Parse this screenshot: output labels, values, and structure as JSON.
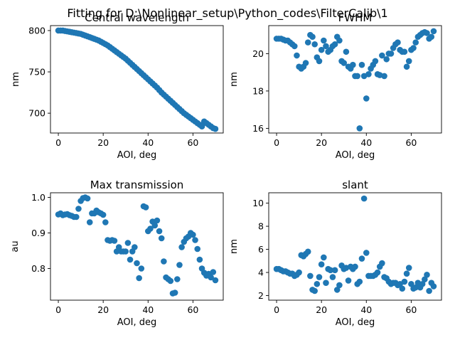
{
  "figure": {
    "suptitle": "Fitting for D:\\Nonlinear_setup\\Python_codes\\FilterCalib\\1",
    "marker_color": "#1f77b4"
  },
  "chart_data": [
    {
      "type": "scatter",
      "title": "Central wavelength",
      "xlabel": "AOI, deg",
      "ylabel": "nm",
      "xlim": [
        -3.5,
        73.5
      ],
      "ylim": [
        676,
        806
      ],
      "xticks": [
        0,
        20,
        40,
        60
      ],
      "yticks": [
        700,
        750,
        800
      ],
      "x": [
        0,
        1,
        2,
        3,
        4,
        5,
        6,
        7,
        8,
        9,
        10,
        11,
        12,
        13,
        14,
        15,
        16,
        17,
        18,
        19,
        20,
        21,
        22,
        23,
        24,
        25,
        26,
        27,
        28,
        29,
        30,
        31,
        32,
        33,
        34,
        35,
        36,
        37,
        38,
        39,
        40,
        41,
        42,
        43,
        44,
        45,
        46,
        47,
        48,
        49,
        50,
        51,
        52,
        53,
        54,
        55,
        56,
        57,
        58,
        59,
        60,
        61,
        62,
        63,
        64,
        65,
        66,
        67,
        68,
        69,
        70
      ],
      "y": [
        800,
        800,
        800,
        799.5,
        799,
        798.5,
        798,
        797.5,
        797,
        796.5,
        796,
        795,
        794,
        793,
        792,
        791,
        790,
        789,
        788,
        786.5,
        785,
        783.5,
        782,
        780,
        778,
        776,
        774,
        772,
        770,
        768,
        766,
        763.5,
        761,
        758.5,
        756,
        753.5,
        751,
        748.5,
        746,
        743.5,
        741,
        738.5,
        736,
        733.5,
        731,
        728,
        725,
        722.5,
        720,
        717.5,
        715,
        712.5,
        710,
        707.5,
        705,
        702.5,
        700,
        698,
        696,
        694,
        692,
        690,
        688,
        686,
        684,
        690,
        688,
        686,
        684,
        682,
        681
      ]
    },
    {
      "type": "scatter",
      "title": "FWHM",
      "xlabel": "AOI, deg",
      "ylabel": "nm",
      "xlim": [
        -3.5,
        73.5
      ],
      "ylim": [
        15.75,
        21.5
      ],
      "xticks": [
        0,
        20,
        40,
        60
      ],
      "yticks": [
        16,
        18,
        20
      ],
      "x": [
        0,
        1,
        2,
        3,
        4,
        5,
        6,
        7,
        8,
        9,
        10,
        11,
        12,
        13,
        14,
        15,
        16,
        17,
        18,
        19,
        20,
        21,
        22,
        23,
        24,
        25,
        26,
        27,
        28,
        29,
        30,
        31,
        32,
        33,
        34,
        35,
        36,
        37,
        38,
        39,
        40,
        41,
        42,
        43,
        44,
        45,
        46,
        47,
        48,
        49,
        50,
        51,
        52,
        53,
        54,
        55,
        56,
        57,
        58,
        59,
        60,
        61,
        62,
        63,
        64,
        65,
        66,
        67,
        68,
        69,
        70
      ],
      "y": [
        20.8,
        20.8,
        20.8,
        20.75,
        20.7,
        20.7,
        20.6,
        20.5,
        20.4,
        19.9,
        19.3,
        19.2,
        19.3,
        19.5,
        20.6,
        21.0,
        20.9,
        20.5,
        19.8,
        19.6,
        20.2,
        20.7,
        20.4,
        20.1,
        20.2,
        20.4,
        20.5,
        20.9,
        20.7,
        19.6,
        19.5,
        20.1,
        19.3,
        19.2,
        19.4,
        18.8,
        18.8,
        16.0,
        19.4,
        18.8,
        17.6,
        18.9,
        19.2,
        19.4,
        19.6,
        18.9,
        18.85,
        19.9,
        18.8,
        19.7,
        20.0,
        20.0,
        20.3,
        20.5,
        20.6,
        20.2,
        20.1,
        20.1,
        19.3,
        19.6,
        20.2,
        20.3,
        20.6,
        20.9,
        21.0,
        21.1,
        21.15,
        21.1,
        20.8,
        20.9,
        21.2
      ]
    },
    {
      "type": "scatter",
      "title": "Max transmission",
      "xlabel": "AOI, deg",
      "ylabel": "au",
      "xlim": [
        -3.5,
        73.5
      ],
      "ylim": [
        0.711,
        1.013
      ],
      "xticks": [
        0,
        20,
        40,
        60
      ],
      "yticks": [
        0.8,
        0.9,
        1.0
      ],
      "x": [
        0,
        1,
        2,
        3,
        4,
        5,
        6,
        7,
        8,
        9,
        10,
        11,
        12,
        13,
        14,
        15,
        16,
        17,
        18,
        19,
        20,
        21,
        22,
        23,
        24,
        25,
        26,
        27,
        28,
        29,
        30,
        31,
        32,
        33,
        34,
        35,
        36,
        37,
        38,
        39,
        40,
        41,
        42,
        43,
        44,
        45,
        46,
        47,
        48,
        49,
        50,
        51,
        52,
        53,
        54,
        55,
        56,
        57,
        58,
        59,
        60,
        61,
        62,
        63,
        64,
        65,
        66,
        67,
        68,
        69,
        70
      ],
      "y": [
        0.952,
        0.955,
        0.95,
        0.952,
        0.953,
        0.95,
        0.948,
        0.945,
        0.945,
        0.968,
        0.99,
        0.998,
        1.0,
        0.997,
        0.93,
        0.955,
        0.955,
        0.963,
        0.958,
        0.955,
        0.951,
        0.93,
        0.88,
        0.878,
        0.88,
        0.878,
        0.848,
        0.86,
        0.848,
        0.848,
        0.848,
        0.872,
        0.825,
        0.848,
        0.86,
        0.815,
        0.773,
        0.8,
        0.975,
        0.972,
        0.905,
        0.912,
        0.932,
        0.921,
        0.935,
        0.905,
        0.885,
        0.82,
        0.775,
        0.77,
        0.765,
        0.73,
        0.732,
        0.77,
        0.81,
        0.86,
        0.875,
        0.885,
        0.89,
        0.9,
        0.895,
        0.88,
        0.855,
        0.825,
        0.8,
        0.788,
        0.78,
        0.785,
        0.775,
        0.79,
        0.767
      ]
    },
    {
      "type": "scatter",
      "title": "slant",
      "xlabel": "AOI, deg",
      "ylabel": "nm",
      "xlim": [
        -3.5,
        73.5
      ],
      "ylim": [
        1.6,
        10.9
      ],
      "xticks": [
        0,
        20,
        40,
        60
      ],
      "yticks": [
        2,
        4,
        6,
        8,
        10
      ],
      "x": [
        0,
        1,
        2,
        3,
        4,
        5,
        6,
        7,
        8,
        9,
        10,
        11,
        12,
        13,
        14,
        15,
        16,
        17,
        18,
        19,
        20,
        21,
        22,
        23,
        24,
        25,
        26,
        27,
        28,
        29,
        30,
        31,
        32,
        33,
        34,
        35,
        36,
        37,
        38,
        39,
        40,
        41,
        42,
        43,
        44,
        45,
        46,
        47,
        48,
        49,
        50,
        51,
        52,
        53,
        54,
        55,
        56,
        57,
        58,
        59,
        60,
        61,
        62,
        63,
        64,
        65,
        66,
        67,
        68,
        69,
        70
      ],
      "y": [
        4.3,
        4.3,
        4.2,
        4.1,
        4.1,
        4.0,
        3.9,
        3.9,
        3.7,
        3.8,
        4.0,
        5.5,
        5.4,
        5.6,
        5.8,
        3.7,
        2.5,
        2.4,
        3.0,
        3.6,
        4.7,
        5.3,
        3.1,
        4.3,
        4.2,
        3.6,
        4.2,
        2.5,
        2.9,
        4.6,
        4.3,
        4.4,
        3.3,
        4.5,
        4.3,
        4.5,
        3.0,
        3.2,
        5.2,
        10.4,
        5.7,
        3.7,
        3.7,
        3.7,
        3.8,
        4.0,
        4.5,
        4.8,
        3.6,
        3.5,
        3.2,
        3.0,
        3.1,
        3.1,
        2.9,
        3.0,
        2.6,
        3.2,
        3.9,
        4.4,
        3.0,
        2.6,
        2.7,
        3.1,
        2.7,
        3.0,
        3.4,
        3.8,
        2.4,
        3.1,
        2.8
      ]
    }
  ]
}
